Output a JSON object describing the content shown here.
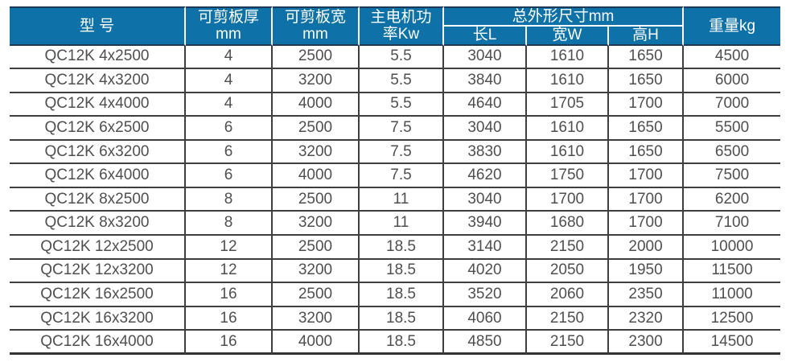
{
  "colors": {
    "header_bg": "#0e72a9",
    "header_border": "#1c3a57",
    "header_text": "#ffffff",
    "grid_line": "#3e3e40",
    "body_text": "#4f4f51"
  },
  "table": {
    "header": {
      "model": "型 号",
      "thickness_line1": "可剪板厚",
      "thickness_line2": "mm",
      "width_line1": "可剪板宽",
      "width_line2": "mm",
      "power_line1": "主电机功",
      "power_line2": "率Kw",
      "dims_group": "总外形尺寸mm",
      "dim_length": "长L",
      "dim_width": "宽W",
      "dim_height": "高H",
      "weight": "重量kg"
    },
    "rows": [
      {
        "model": "QC12K 4x2500",
        "values": [
          "4",
          "2500",
          "5.5",
          "3040",
          "1610",
          "1650",
          "4500"
        ]
      },
      {
        "model": "QC12K 4x3200",
        "values": [
          "4",
          "3200",
          "5.5",
          "3840",
          "1610",
          "1650",
          "6000"
        ]
      },
      {
        "model": "QC12K 4x4000",
        "values": [
          "4",
          "4000",
          "5.5",
          "4640",
          "1705",
          "1700",
          "7000"
        ]
      },
      {
        "model": "QC12K 6x2500",
        "values": [
          "6",
          "2500",
          "7.5",
          "3040",
          "1610",
          "1650",
          "5500"
        ]
      },
      {
        "model": "QC12K 6x3200",
        "values": [
          "6",
          "3200",
          "7.5",
          "3830",
          "1610",
          "1650",
          "6500"
        ]
      },
      {
        "model": "QC12K 6x4000",
        "values": [
          "6",
          "4000",
          "7.5",
          "4620",
          "1750",
          "1700",
          "7500"
        ]
      },
      {
        "model": "QC12K 8x2500",
        "values": [
          "8",
          "2500",
          "11",
          "3040",
          "1700",
          "1700",
          "6200"
        ]
      },
      {
        "model": "QC12K 8x3200",
        "values": [
          "8",
          "3200",
          "11",
          "3940",
          "1680",
          "1700",
          "7100"
        ]
      },
      {
        "model": "QC12K 12x2500",
        "values": [
          "12",
          "2500",
          "18.5",
          "3140",
          "2150",
          "2000",
          "10000"
        ]
      },
      {
        "model": "QC12K 12x3200",
        "values": [
          "12",
          "3200",
          "18.5",
          "4020",
          "2050",
          "1950",
          "11500"
        ]
      },
      {
        "model": "QC12K 16x2500",
        "values": [
          "16",
          "2500",
          "18.5",
          "3520",
          "2060",
          "2350",
          "11000"
        ]
      },
      {
        "model": "QC12K 16x3200",
        "values": [
          "16",
          "3200",
          "18.5",
          "4060",
          "2150",
          "2320",
          "12500"
        ]
      },
      {
        "model": "QC12K 16x4000",
        "values": [
          "16",
          "4000",
          "18.5",
          "4850",
          "2150",
          "2300",
          "14500"
        ]
      }
    ]
  }
}
